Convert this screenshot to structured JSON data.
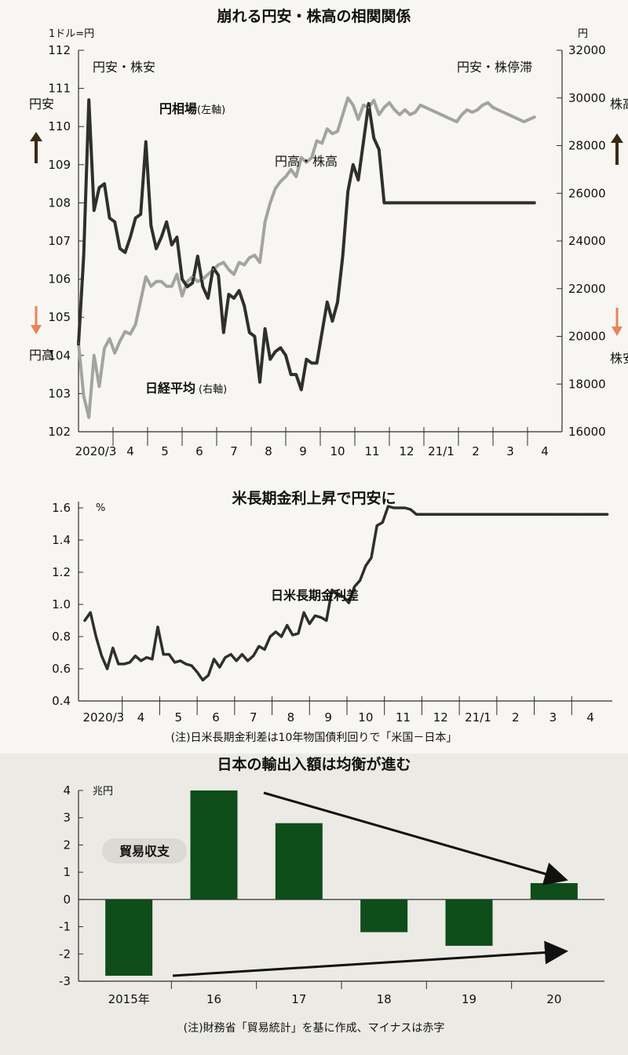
{
  "colors": {
    "ink": "#2e2e2e",
    "yen_line": "#2f2f2f",
    "nikkei_line": "#a3a3a3",
    "bar": "#0f4d1a",
    "up_arrow": "#3a2a12",
    "down_arrow": "#e8835a",
    "bg": "#f7f6f2"
  },
  "chart_data": [
    {
      "type": "line",
      "title": "崩れる円安・株高の相関関係",
      "left_axis": {
        "unit": "1ドル=円",
        "ylim": [
          102,
          112
        ],
        "ticks": [
          "102",
          "103",
          "104",
          "105",
          "106",
          "107",
          "108",
          "109",
          "110",
          "111",
          "112"
        ]
      },
      "right_axis": {
        "unit": "円",
        "ylim": [
          16000,
          32000
        ],
        "ticks": [
          "16000",
          "18000",
          "20000",
          "22000",
          "24000",
          "26000",
          "28000",
          "30000",
          "32000"
        ]
      },
      "x_ticks": [
        "2020/3",
        "4",
        "5",
        "6",
        "7",
        "8",
        "9",
        "10",
        "11",
        "12",
        "21/1",
        "2",
        "3",
        "4"
      ],
      "x_range": [
        0,
        14
      ],
      "annotations": {
        "left_top": "円安・株安",
        "right_top": "円安・株停滞",
        "middle": "円高・株高",
        "left_up": "円安",
        "left_down": "円高",
        "right_up": "株高",
        "right_down": "株安"
      },
      "series": [
        {
          "name": "円相場",
          "name_note": "(左軸)",
          "axis": "left",
          "x": [
            0,
            0.15,
            0.3,
            0.45,
            0.6,
            0.75,
            0.9,
            1.05,
            1.2,
            1.35,
            1.5,
            1.65,
            1.8,
            1.95,
            2.1,
            2.25,
            2.4,
            2.55,
            2.7,
            2.85,
            3.0,
            3.15,
            3.3,
            3.45,
            3.6,
            3.75,
            3.9,
            4.05,
            4.2,
            4.35,
            4.5,
            4.65,
            4.8,
            4.95,
            5.1,
            5.25,
            5.4,
            5.55,
            5.7,
            5.85,
            6.0,
            6.15,
            6.3,
            6.45,
            6.6,
            6.75,
            6.9,
            7.05,
            7.2,
            7.35,
            7.5,
            7.65,
            7.8,
            7.95,
            8.1,
            8.25,
            8.4,
            8.55,
            8.7,
            8.85,
            9.0,
            9.15,
            9.3,
            9.45,
            9.6,
            9.75,
            9.9,
            10.05,
            10.2,
            10.35,
            10.5,
            10.65,
            10.8,
            10.95,
            11.1,
            11.25,
            11.4,
            11.55,
            11.7,
            11.85,
            12.0,
            12.15,
            12.3,
            12.45,
            12.6,
            12.75,
            12.9,
            13.05,
            13.2
          ],
          "values": [
            104.3,
            106.6,
            110.7,
            107.8,
            108.4,
            108.5,
            107.6,
            107.5,
            106.8,
            106.7,
            107.1,
            107.6,
            107.7,
            109.6,
            107.4,
            106.8,
            107.1,
            107.5,
            106.9,
            107.1,
            106.0,
            105.8,
            105.9,
            106.6,
            105.8,
            105.5,
            106.3,
            106.1,
            104.6,
            105.6,
            105.5,
            105.7,
            105.3,
            104.6,
            104.5,
            103.3,
            104.7,
            103.9,
            104.1,
            104.2,
            104.0,
            103.5,
            103.5,
            103.1,
            103.9,
            103.8,
            103.8,
            104.6,
            105.4,
            104.9,
            105.4,
            106.6,
            108.3,
            109.0,
            108.6,
            109.6,
            110.6,
            109.7,
            109.4,
            108.0,
            108.0,
            108.0,
            108.0,
            108.0,
            108.0,
            108.0,
            108.0,
            108.0,
            108.0,
            108.0,
            108.0,
            108.0,
            108.0,
            108.0,
            108.0,
            108.0,
            108.0,
            108.0,
            108.0,
            108.0,
            108.0,
            108.0,
            108.0,
            108.0,
            108.0,
            108.0,
            108.0,
            108.0,
            108.0
          ]
        },
        {
          "name": "日経平均",
          "name_note": "(右軸)",
          "axis": "right",
          "x": [
            0,
            0.15,
            0.3,
            0.45,
            0.6,
            0.75,
            0.9,
            1.05,
            1.2,
            1.35,
            1.5,
            1.65,
            1.8,
            1.95,
            2.1,
            2.25,
            2.4,
            2.55,
            2.7,
            2.85,
            3.0,
            3.15,
            3.3,
            3.45,
            3.6,
            3.75,
            3.9,
            4.05,
            4.2,
            4.35,
            4.5,
            4.65,
            4.8,
            4.95,
            5.1,
            5.25,
            5.4,
            5.55,
            5.7,
            5.85,
            6.0,
            6.15,
            6.3,
            6.45,
            6.6,
            6.75,
            6.9,
            7.05,
            7.2,
            7.35,
            7.5,
            7.65,
            7.8,
            7.95,
            8.1,
            8.25,
            8.4,
            8.55,
            8.7,
            8.85,
            9.0,
            9.15,
            9.3,
            9.45,
            9.6,
            9.75,
            9.9,
            10.05,
            10.2,
            10.35,
            10.5,
            10.65,
            10.8,
            10.95,
            11.1,
            11.25,
            11.4,
            11.55,
            11.7,
            11.85,
            12.0,
            12.15,
            12.3,
            12.45,
            12.6,
            12.75,
            12.9,
            13.05,
            13.2
          ],
          "values": [
            19700,
            17500,
            16600,
            19200,
            17900,
            19500,
            19900,
            19300,
            19800,
            20200,
            20100,
            20500,
            21500,
            22500,
            22100,
            22300,
            22300,
            22100,
            22100,
            22600,
            21700,
            22300,
            22500,
            22300,
            22400,
            22600,
            22800,
            23000,
            23100,
            22800,
            22600,
            23100,
            23000,
            23300,
            23400,
            23100,
            24800,
            25600,
            26200,
            26500,
            26700,
            27000,
            26700,
            27500,
            27300,
            27500,
            28200,
            28100,
            28700,
            28500,
            28600,
            29300,
            30000,
            29700,
            29100,
            29700,
            29600,
            29900,
            29300,
            29600,
            29800,
            29500,
            29300,
            29500,
            29300,
            29400,
            29700,
            29600,
            29500,
            29400,
            29300,
            29200,
            29100,
            29000,
            29300,
            29500,
            29400,
            29500,
            29700,
            29800,
            29600,
            29500,
            29400,
            29300,
            29200,
            29100,
            29000,
            29100,
            29200
          ]
        }
      ]
    },
    {
      "type": "line",
      "title": "米長期金利上昇で円安に",
      "ylabel": "%",
      "ylim": [
        0.4,
        1.6
      ],
      "y_ticks": [
        "0.4",
        "0.6",
        "0.8",
        "1.0",
        "1.2",
        "1.4",
        "1.6"
      ],
      "x_ticks": [
        "2020/3",
        "4",
        "5",
        "6",
        "7",
        "8",
        "9",
        "10",
        "11",
        "12",
        "21/1",
        "2",
        "3",
        "4"
      ],
      "x_range": [
        0,
        14
      ],
      "note": "(注)日米長期金利差は10年物国債利回りで「米国－日本」",
      "series": [
        {
          "name": "日米長期金利差",
          "x": [
            0,
            0.15,
            0.3,
            0.45,
            0.6,
            0.75,
            0.9,
            1.05,
            1.2,
            1.35,
            1.5,
            1.65,
            1.8,
            1.95,
            2.1,
            2.25,
            2.4,
            2.55,
            2.7,
            2.85,
            3.0,
            3.15,
            3.3,
            3.45,
            3.6,
            3.75,
            3.9,
            4.05,
            4.2,
            4.35,
            4.5,
            4.65,
            4.8,
            4.95,
            5.1,
            5.25,
            5.4,
            5.55,
            5.7,
            5.85,
            6.0,
            6.15,
            6.3,
            6.45,
            6.6,
            6.75,
            6.9,
            7.05,
            7.2,
            7.35,
            7.5,
            7.65,
            7.8,
            7.95,
            8.1,
            8.25,
            8.4,
            8.55,
            8.7,
            8.85,
            9.0,
            9.15,
            9.3,
            9.45,
            9.6,
            9.75,
            9.9,
            10.05,
            10.2,
            10.35,
            10.5,
            10.65,
            10.8,
            10.95,
            11.1,
            11.25,
            11.4,
            11.55,
            11.7,
            11.85,
            12.0,
            12.15,
            12.3,
            12.45,
            12.6,
            12.75,
            12.9,
            13.05,
            13.2,
            13.35,
            13.5,
            13.65,
            13.8,
            13.95
          ],
          "values": [
            0.9,
            0.95,
            0.8,
            0.68,
            0.6,
            0.73,
            0.63,
            0.63,
            0.64,
            0.68,
            0.65,
            0.67,
            0.66,
            0.86,
            0.69,
            0.69,
            0.64,
            0.65,
            0.63,
            0.62,
            0.58,
            0.53,
            0.56,
            0.66,
            0.61,
            0.67,
            0.69,
            0.65,
            0.69,
            0.65,
            0.68,
            0.74,
            0.72,
            0.8,
            0.83,
            0.8,
            0.87,
            0.81,
            0.82,
            0.95,
            0.88,
            0.93,
            0.92,
            0.9,
            1.09,
            1.06,
            1.05,
            1.01,
            1.11,
            1.15,
            1.24,
            1.29,
            1.49,
            1.51,
            1.61,
            1.6,
            1.6,
            1.6,
            1.59,
            1.56,
            1.56,
            1.56,
            1.56,
            1.56,
            1.56,
            1.56,
            1.56,
            1.56,
            1.56,
            1.56,
            1.56,
            1.56,
            1.56,
            1.56,
            1.56,
            1.56,
            1.56,
            1.56,
            1.56,
            1.56,
            1.56,
            1.56,
            1.56,
            1.56,
            1.56,
            1.56,
            1.56,
            1.56,
            1.56,
            1.56,
            1.56,
            1.56,
            1.56,
            1.56
          ]
        }
      ]
    },
    {
      "type": "bar",
      "title": "日本の輸出入額は均衡が進む",
      "ylabel": "兆円",
      "ylim": [
        -3,
        4
      ],
      "y_ticks": [
        "-3",
        "-2",
        "-1",
        "0",
        "1",
        "2",
        "3",
        "4"
      ],
      "categories": [
        "2015年",
        "16",
        "17",
        "18",
        "19",
        "20"
      ],
      "values": [
        -2.8,
        4.0,
        2.8,
        -1.2,
        -1.7,
        0.6
      ],
      "legend_label": "貿易収支",
      "note": "(注)財務省「貿易統計」を基に作成、マイナスは赤字"
    }
  ]
}
